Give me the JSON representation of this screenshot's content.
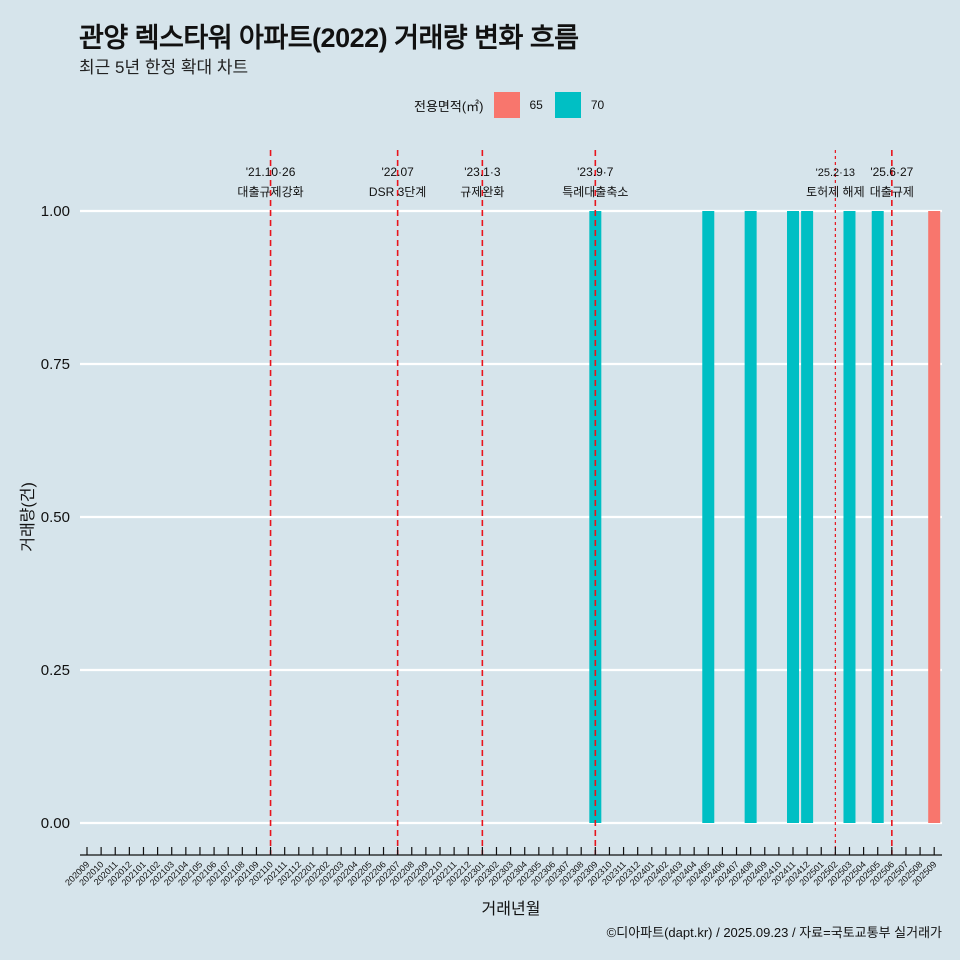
{
  "header": {
    "title": "관양 렉스타워 아파트(2022) 거래량 변화 흐름",
    "subtitle": "최근 5년 한정 확대 차트"
  },
  "legend": {
    "title": "전용면적(㎡)",
    "items": [
      {
        "label": "65",
        "color": "#f8766d"
      },
      {
        "label": "70",
        "color": "#00bfc4"
      }
    ]
  },
  "footer": "©디아파트(dapt.kr) / 2025.09.23 / 자료=국토교통부 실거래가",
  "chart_data": {
    "type": "bar",
    "title": "관양 렉스타워 아파트(2022) 거래량 변화 흐름",
    "subtitle": "최근 5년 한정 확대 차트",
    "xlabel": "거래년월",
    "ylabel": "거래량(건)",
    "ylim": [
      0,
      1
    ],
    "yticks": [
      "0.00",
      "0.25",
      "0.50",
      "0.75",
      "1.00"
    ],
    "grid": "horizontal",
    "legend_position": "top",
    "categories": [
      "202009",
      "202010",
      "202011",
      "202012",
      "202101",
      "202102",
      "202103",
      "202104",
      "202105",
      "202106",
      "202107",
      "202108",
      "202109",
      "202110",
      "202111",
      "202112",
      "202201",
      "202202",
      "202203",
      "202204",
      "202205",
      "202206",
      "202207",
      "202208",
      "202209",
      "202210",
      "202211",
      "202212",
      "202301",
      "202302",
      "202303",
      "202304",
      "202305",
      "202306",
      "202307",
      "202308",
      "202309",
      "202310",
      "202311",
      "202312",
      "202401",
      "202402",
      "202403",
      "202404",
      "202405",
      "202406",
      "202407",
      "202408",
      "202409",
      "202410",
      "202411",
      "202412",
      "202501",
      "202502",
      "202503",
      "202504",
      "202505",
      "202506",
      "202507",
      "202508",
      "202509"
    ],
    "series": [
      {
        "name": "65",
        "color": "#f8766d",
        "points": [
          {
            "x": "202509",
            "y": 1
          }
        ]
      },
      {
        "name": "70",
        "color": "#00bfc4",
        "points": [
          {
            "x": "202309",
            "y": 1
          },
          {
            "x": "202405",
            "y": 1
          },
          {
            "x": "202408",
            "y": 1
          },
          {
            "x": "202411",
            "y": 1
          },
          {
            "x": "202412",
            "y": 1
          },
          {
            "x": "202503",
            "y": 1
          },
          {
            "x": "202505",
            "y": 1
          }
        ]
      }
    ],
    "annotations": [
      {
        "x": "202110",
        "line1": "'21.10·26",
        "line2": "대출규제강화",
        "style": "dashed"
      },
      {
        "x": "202207",
        "line1": "'22.07",
        "line2": "DSR 3단계",
        "style": "dashed"
      },
      {
        "x": "202301",
        "line1": "'23.1·3",
        "line2": "규제완화",
        "style": "dashed"
      },
      {
        "x": "202309",
        "line1": "'23.9·7",
        "line2": "특례대출축소",
        "style": "dashed"
      },
      {
        "x": "202502",
        "line1": "'25.2·13",
        "line2": "토허제 해제",
        "style": "dotted"
      },
      {
        "x": "202506",
        "line1": "'25.6·27",
        "line2": "대출규제",
        "style": "dashed"
      }
    ]
  }
}
